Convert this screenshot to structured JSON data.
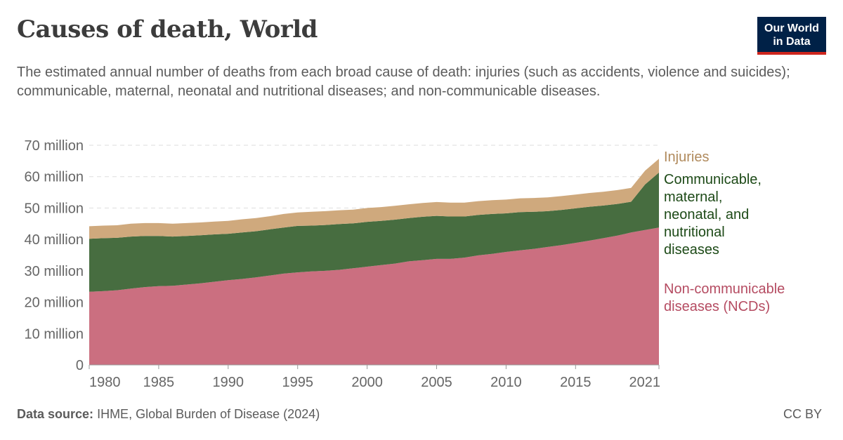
{
  "header": {
    "title": "Causes of death, World",
    "subtitle": "The estimated annual number of deaths from each broad cause of death: injuries (such as accidents, violence and suicides); communicable, maternal, neonatal and nutritional diseases; and non-communicable diseases.",
    "logo_line1": "Our World",
    "logo_line2": "in Data"
  },
  "footer": {
    "source_label": "Data source:",
    "source_text": "IHME, Global Burden of Disease (2024)",
    "license": "CC BY"
  },
  "colors": {
    "ncd": "#cb6f80",
    "communicable": "#476d40",
    "injuries": "#cfa97d",
    "ncd_label": "#b54c62",
    "communicable_label": "#1d4a17",
    "injuries_label": "#b08a5c"
  },
  "chart_data": {
    "type": "area",
    "stacked": true,
    "title": "Causes of death, World",
    "x_tick_labels": [
      "1980",
      "1985",
      "1990",
      "1995",
      "2000",
      "2005",
      "2010",
      "2015",
      "2021"
    ],
    "y_tick_labels": [
      "0",
      "10 million",
      "20 million",
      "30 million",
      "40 million",
      "50 million",
      "60 million",
      "70 million"
    ],
    "ylim": [
      0,
      70000000
    ],
    "xlim": [
      1980,
      2021
    ],
    "grid": "horizontal-dashed",
    "x": [
      1980,
      1981,
      1982,
      1983,
      1984,
      1985,
      1986,
      1987,
      1988,
      1989,
      1990,
      1991,
      1992,
      1993,
      1994,
      1995,
      1996,
      1997,
      1998,
      1999,
      2000,
      2001,
      2002,
      2003,
      2004,
      2005,
      2006,
      2007,
      2008,
      2009,
      2010,
      2011,
      2012,
      2013,
      2014,
      2015,
      2016,
      2017,
      2018,
      2019,
      2020,
      2021
    ],
    "series": [
      {
        "name": "Non-communicable diseases (NCDs)",
        "label_lines": [
          "Non-communicable",
          "diseases (NCDs)"
        ],
        "values": [
          23.3,
          23.5,
          23.8,
          24.3,
          24.8,
          25.1,
          25.2,
          25.6,
          26.0,
          26.5,
          27.0,
          27.4,
          27.9,
          28.5,
          29.1,
          29.5,
          29.8,
          30.0,
          30.3,
          30.8,
          31.3,
          31.8,
          32.3,
          33.0,
          33.4,
          33.8,
          33.8,
          34.2,
          34.9,
          35.4,
          36.0,
          36.5,
          37.0,
          37.6,
          38.2,
          38.9,
          39.6,
          40.4,
          41.2,
          42.2,
          43.0,
          43.8
        ]
      },
      {
        "name": "Communicable, maternal, neonatal, and nutritional diseases",
        "label_lines": [
          "Communicable,",
          "maternal,",
          "neonatal, and",
          "nutritional",
          "diseases"
        ],
        "values": [
          16.9,
          16.9,
          16.7,
          16.6,
          16.3,
          16.0,
          15.7,
          15.5,
          15.3,
          15.1,
          14.8,
          14.8,
          14.7,
          14.7,
          14.7,
          14.8,
          14.6,
          14.6,
          14.6,
          14.3,
          14.3,
          14.1,
          14.0,
          13.8,
          13.8,
          13.7,
          13.5,
          13.1,
          12.9,
          12.7,
          12.3,
          12.2,
          11.8,
          11.4,
          11.2,
          11.0,
          10.8,
          10.4,
          10.1,
          9.8,
          14.5,
          17.5
        ]
      },
      {
        "name": "Injuries",
        "label_lines": [
          "Injuries"
        ],
        "values": [
          4.0,
          4.0,
          4.0,
          4.1,
          4.1,
          4.1,
          4.1,
          4.1,
          4.1,
          4.1,
          4.1,
          4.2,
          4.2,
          4.2,
          4.3,
          4.3,
          4.4,
          4.4,
          4.4,
          4.4,
          4.4,
          4.4,
          4.4,
          4.4,
          4.4,
          4.4,
          4.4,
          4.4,
          4.4,
          4.4,
          4.4,
          4.4,
          4.4,
          4.4,
          4.4,
          4.4,
          4.4,
          4.4,
          4.4,
          4.4,
          4.4,
          4.4
        ]
      }
    ],
    "units": "million"
  }
}
